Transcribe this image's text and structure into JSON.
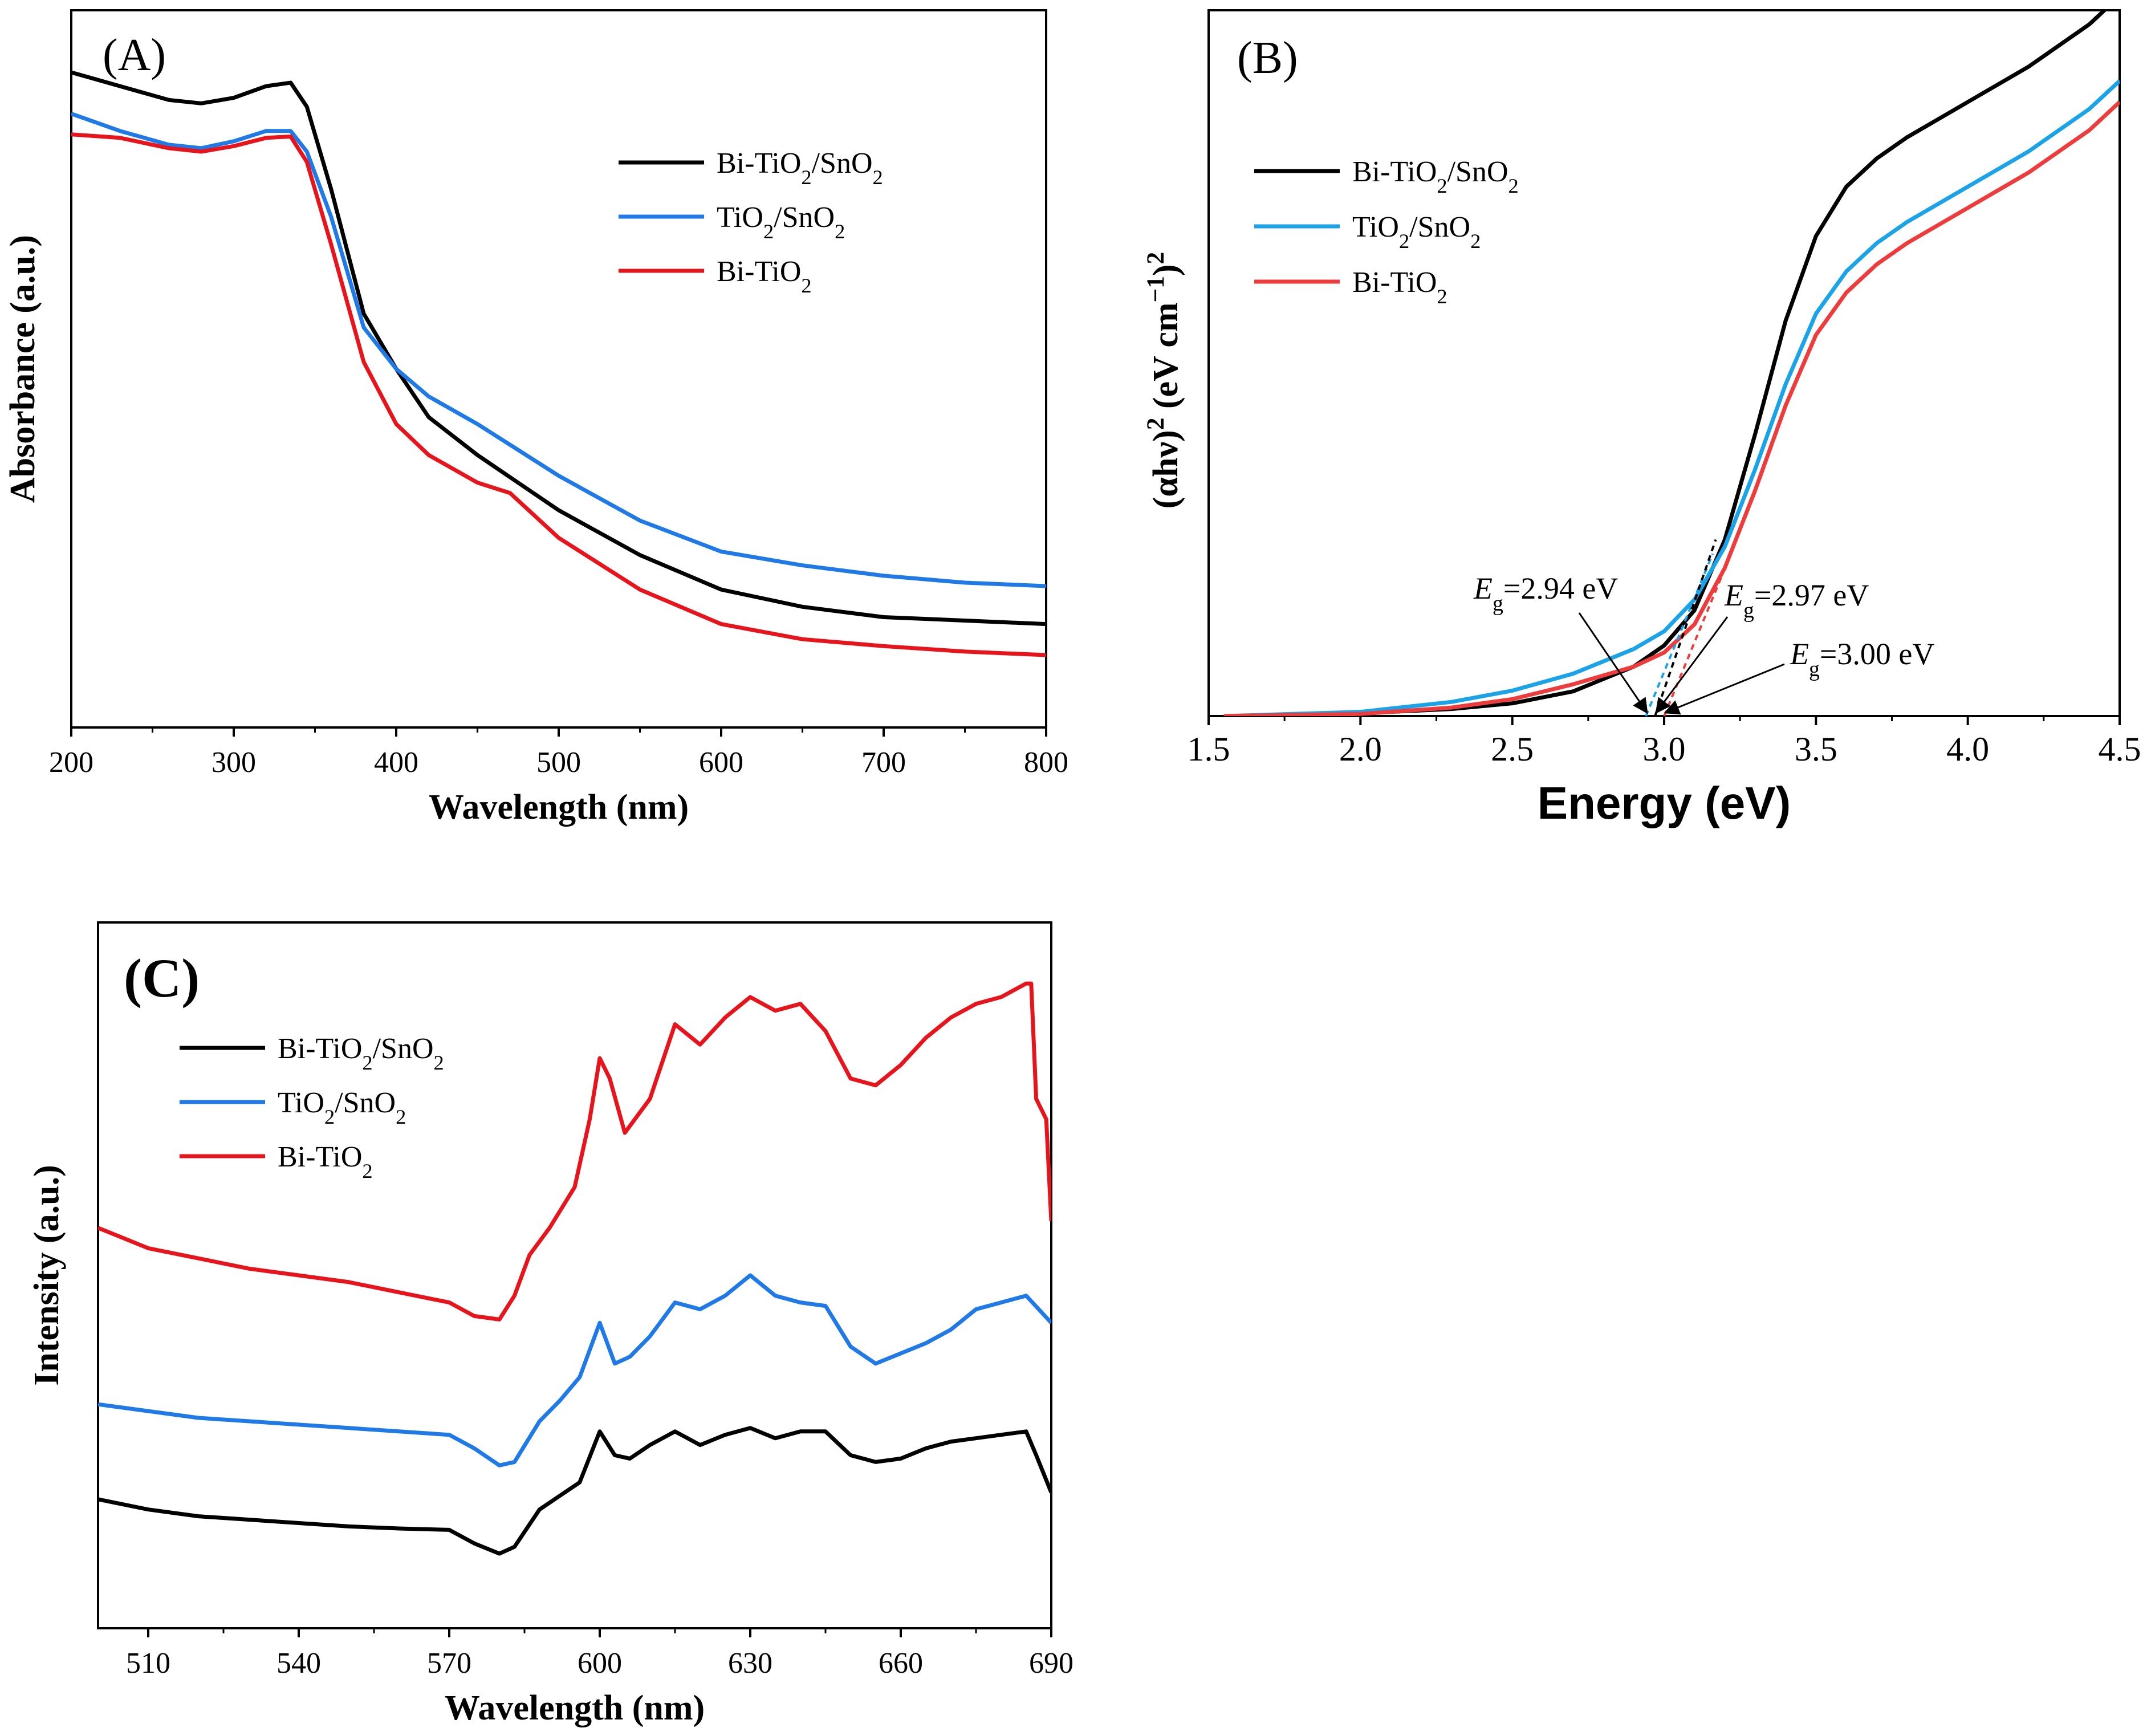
{
  "chart_data": [
    {
      "panel": "(A)",
      "type": "line",
      "xlabel": "Wavelength (nm)",
      "ylabel": "Absorbance (a.u.)",
      "xlim": [
        200,
        800
      ],
      "ylim": [
        0,
        1
      ],
      "xticks": [
        "200",
        "300",
        "400",
        "500",
        "600",
        "700",
        "800"
      ],
      "yticks": [],
      "legend_position": "top-right",
      "series": [
        {
          "name": "Bi-TiO2/SnO2",
          "name_base": "Bi-TiO",
          "name_mid": "/SnO",
          "color": "#000000",
          "x": [
            200,
            230,
            260,
            280,
            300,
            320,
            335,
            345,
            360,
            380,
            400,
            420,
            450,
            500,
            550,
            600,
            650,
            700,
            750,
            800
          ],
          "y": [
            0.95,
            0.93,
            0.91,
            0.905,
            0.913,
            0.93,
            0.935,
            0.9,
            0.78,
            0.6,
            0.52,
            0.45,
            0.395,
            0.315,
            0.25,
            0.2,
            0.175,
            0.16,
            0.155,
            0.15
          ]
        },
        {
          "name": "TiO2/SnO2",
          "name_base": "TiO",
          "name_mid": "/SnO",
          "color": "#1f7ae8",
          "x": [
            200,
            230,
            260,
            280,
            300,
            320,
            335,
            345,
            360,
            380,
            400,
            420,
            450,
            500,
            550,
            600,
            650,
            700,
            750,
            800
          ],
          "y": [
            0.89,
            0.865,
            0.845,
            0.84,
            0.85,
            0.865,
            0.865,
            0.835,
            0.74,
            0.58,
            0.52,
            0.48,
            0.44,
            0.365,
            0.3,
            0.255,
            0.235,
            0.22,
            0.21,
            0.205
          ]
        },
        {
          "name": "Bi-TiO2",
          "name_base": "Bi-TiO",
          "name_mid": "",
          "color": "#e8141c",
          "x": [
            200,
            230,
            260,
            280,
            300,
            320,
            335,
            345,
            360,
            380,
            400,
            420,
            450,
            470,
            500,
            550,
            600,
            650,
            700,
            750,
            800
          ],
          "y": [
            0.86,
            0.855,
            0.84,
            0.835,
            0.843,
            0.855,
            0.857,
            0.82,
            0.7,
            0.53,
            0.44,
            0.395,
            0.355,
            0.34,
            0.275,
            0.2,
            0.15,
            0.128,
            0.118,
            0.11,
            0.105
          ]
        }
      ]
    },
    {
      "panel": "(B)",
      "type": "line",
      "xlabel": "Energy (eV)",
      "ylabel": "(αhν)2 (eV cm−1)2",
      "ylabel_parts": {
        "a": "(αhν)",
        "sup1": "2",
        "b": " (eV cm",
        "sup2": "−1",
        "c": ")",
        "sup3": "2"
      },
      "xlim": [
        1.5,
        4.5
      ],
      "ylim": [
        0,
        1
      ],
      "xticks": [
        "1.5",
        "2.0",
        "2.5",
        "3.0",
        "3.5",
        "4.0",
        "4.5"
      ],
      "yticks": [],
      "legend_position": "top-left",
      "series": [
        {
          "name": "Bi-TiO2/SnO2",
          "name_base": "Bi-TiO",
          "name_mid": "/SnO",
          "color": "#000000",
          "x": [
            1.55,
            2.0,
            2.3,
            2.5,
            2.7,
            2.9,
            3.0,
            3.1,
            3.2,
            3.3,
            3.4,
            3.5,
            3.6,
            3.7,
            3.8,
            4.0,
            4.2,
            4.4,
            4.5
          ],
          "y": [
            0.0,
            0.004,
            0.01,
            0.018,
            0.035,
            0.07,
            0.1,
            0.15,
            0.25,
            0.4,
            0.56,
            0.68,
            0.75,
            0.79,
            0.82,
            0.87,
            0.92,
            0.98,
            1.02
          ]
        },
        {
          "name": "TiO2/SnO2",
          "name_base": "TiO",
          "name_mid": "/SnO",
          "color": "#1aa3e8",
          "x": [
            1.55,
            2.0,
            2.3,
            2.5,
            2.7,
            2.9,
            3.0,
            3.1,
            3.2,
            3.3,
            3.4,
            3.5,
            3.6,
            3.7,
            3.8,
            4.0,
            4.2,
            4.4,
            4.5
          ],
          "y": [
            0.0,
            0.006,
            0.02,
            0.036,
            0.06,
            0.095,
            0.12,
            0.165,
            0.24,
            0.35,
            0.47,
            0.57,
            0.63,
            0.67,
            0.7,
            0.75,
            0.8,
            0.86,
            0.9
          ]
        },
        {
          "name": "Bi-TiO2",
          "name_base": "Bi-TiO",
          "name_mid": "",
          "color": "#ee3b3b",
          "x": [
            1.55,
            2.0,
            2.3,
            2.5,
            2.7,
            2.9,
            3.0,
            3.1,
            3.2,
            3.3,
            3.4,
            3.5,
            3.6,
            3.7,
            3.8,
            4.0,
            4.2,
            4.4,
            4.5
          ],
          "y": [
            0.0,
            0.003,
            0.012,
            0.024,
            0.045,
            0.07,
            0.09,
            0.13,
            0.21,
            0.32,
            0.44,
            0.54,
            0.6,
            0.64,
            0.67,
            0.72,
            0.77,
            0.83,
            0.87
          ]
        }
      ],
      "tangents": [
        {
          "color": "#1aa3e8",
          "x0": 2.94,
          "x1": 3.16,
          "y1": 0.23
        },
        {
          "color": "#000000",
          "x0": 2.97,
          "x1": 3.17,
          "y1": 0.25
        },
        {
          "color": "#ee3b3b",
          "x0": 3.0,
          "x1": 3.22,
          "y1": 0.23
        }
      ],
      "annotations": [
        {
          "label": "E",
          "sub": "g",
          "value": "=2.94 eV",
          "target_x": 2.94
        },
        {
          "label": "E",
          "sub": "g",
          "value": "=2.97 eV",
          "target_x": 2.97
        },
        {
          "label": "E",
          "sub": "g",
          "value": "=3.00 eV",
          "target_x": 3.0
        }
      ]
    },
    {
      "panel": "(C)",
      "type": "line",
      "xlabel": "Wavelength (nm)",
      "ylabel": "Intensity (a.u.)",
      "xlim": [
        500,
        690
      ],
      "ylim": [
        0,
        1
      ],
      "xticks": [
        "510",
        "540",
        "570",
        "600",
        "630",
        "660",
        "690"
      ],
      "xtick_values": [
        510,
        540,
        570,
        600,
        630,
        660,
        690
      ],
      "yticks": [],
      "legend_position": "top-left",
      "series": [
        {
          "name": "Bi-TiO2/SnO2",
          "name_base": "Bi-TiO",
          "name_mid": "/SnO",
          "color": "#000000",
          "x": [
            500,
            510,
            520,
            530,
            540,
            550,
            560,
            570,
            575,
            580,
            583,
            588,
            592,
            596,
            600,
            603,
            606,
            610,
            615,
            620,
            625,
            630,
            635,
            640,
            645,
            650,
            655,
            660,
            665,
            670,
            675,
            680,
            685,
            687,
            690
          ],
          "y": [
            0.19,
            0.175,
            0.165,
            0.16,
            0.155,
            0.15,
            0.147,
            0.145,
            0.125,
            0.11,
            0.12,
            0.175,
            0.195,
            0.215,
            0.29,
            0.255,
            0.25,
            0.27,
            0.29,
            0.27,
            0.285,
            0.295,
            0.28,
            0.29,
            0.29,
            0.255,
            0.245,
            0.25,
            0.265,
            0.275,
            0.28,
            0.285,
            0.29,
            0.255,
            0.2
          ]
        },
        {
          "name": "TiO2/SnO2",
          "name_base": "TiO",
          "name_mid": "/SnO",
          "color": "#1f7ae8",
          "x": [
            500,
            510,
            520,
            530,
            540,
            550,
            560,
            570,
            575,
            580,
            583,
            588,
            592,
            596,
            600,
            603,
            606,
            610,
            615,
            620,
            625,
            630,
            635,
            640,
            645,
            650,
            655,
            660,
            665,
            670,
            675,
            680,
            685,
            690
          ],
          "y": [
            0.33,
            0.32,
            0.31,
            0.305,
            0.3,
            0.295,
            0.29,
            0.285,
            0.265,
            0.24,
            0.245,
            0.305,
            0.335,
            0.37,
            0.45,
            0.39,
            0.4,
            0.43,
            0.48,
            0.47,
            0.49,
            0.52,
            0.49,
            0.48,
            0.475,
            0.415,
            0.39,
            0.405,
            0.42,
            0.44,
            0.47,
            0.48,
            0.49,
            0.45
          ]
        },
        {
          "name": "Bi-TiO2",
          "name_base": "Bi-TiO",
          "name_mid": "",
          "color": "#e8141c",
          "x": [
            500,
            505,
            510,
            520,
            530,
            540,
            550,
            560,
            570,
            575,
            580,
            583,
            586,
            590,
            595,
            598,
            600,
            602,
            605,
            610,
            615,
            620,
            625,
            630,
            635,
            640,
            645,
            650,
            655,
            660,
            665,
            670,
            675,
            680,
            685,
            686,
            687,
            689,
            690
          ],
          "y": [
            0.59,
            0.575,
            0.56,
            0.545,
            0.53,
            0.52,
            0.51,
            0.495,
            0.48,
            0.46,
            0.455,
            0.49,
            0.55,
            0.59,
            0.65,
            0.75,
            0.84,
            0.81,
            0.73,
            0.78,
            0.89,
            0.86,
            0.9,
            0.93,
            0.91,
            0.92,
            0.88,
            0.81,
            0.8,
            0.83,
            0.87,
            0.9,
            0.92,
            0.93,
            0.95,
            0.95,
            0.78,
            0.75,
            0.6
          ]
        }
      ]
    }
  ]
}
